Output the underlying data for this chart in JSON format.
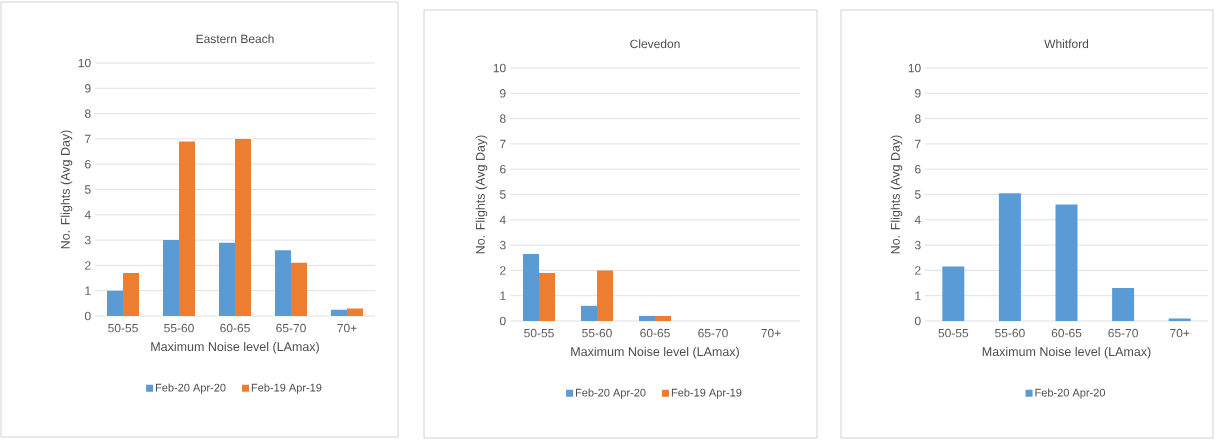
{
  "chart_data": [
    {
      "type": "bar",
      "title": "Eastern Beach",
      "xlabel": "Maximum Noise level (LAmax)",
      "ylabel": "No. Flights (Avg Day)",
      "categories": [
        "50-55",
        "55-60",
        "60-65",
        "65-70",
        "70+"
      ],
      "series": [
        {
          "name": "Feb-20 Apr-20",
          "color": "#5b9bd5",
          "values": [
            1.0,
            3.0,
            2.9,
            2.6,
            0.25
          ]
        },
        {
          "name": "Feb-19 Apr-19",
          "color": "#ed7d31",
          "values": [
            1.7,
            6.9,
            7.0,
            2.1,
            0.3
          ]
        }
      ],
      "ylim": [
        0,
        10
      ],
      "yticks": [
        0,
        1,
        2,
        3,
        4,
        5,
        6,
        7,
        8,
        9,
        10
      ],
      "grid": "y",
      "legend": "bottom"
    },
    {
      "type": "bar",
      "title": "Clevedon",
      "xlabel": "Maximum Noise level (LAmax)",
      "ylabel": "No. Flights (Avg Day)",
      "categories": [
        "50-55",
        "55-60",
        "60-65",
        "65-70",
        "70+"
      ],
      "series": [
        {
          "name": "Feb-20 Apr-20",
          "color": "#5b9bd5",
          "values": [
            2.65,
            0.6,
            0.2,
            0,
            0
          ]
        },
        {
          "name": "Feb-19 Apr-19",
          "color": "#ed7d31",
          "values": [
            1.9,
            2.0,
            0.2,
            0,
            0
          ]
        }
      ],
      "ylim": [
        0,
        10
      ],
      "yticks": [
        0,
        1,
        2,
        3,
        4,
        5,
        6,
        7,
        8,
        9,
        10
      ],
      "grid": "y",
      "legend": "bottom"
    },
    {
      "type": "bar",
      "title": "Whitford",
      "xlabel": "Maximum Noise level (LAmax)",
      "ylabel": "No. Flights (Avg Day)",
      "categories": [
        "50-55",
        "55-60",
        "60-65",
        "65-70",
        "70+"
      ],
      "series": [
        {
          "name": "Feb-20 Apr-20",
          "color": "#5b9bd5",
          "values": [
            2.15,
            5.05,
            4.6,
            1.3,
            0.1
          ]
        }
      ],
      "ylim": [
        0,
        10
      ],
      "yticks": [
        0,
        1,
        2,
        3,
        4,
        5,
        6,
        7,
        8,
        9,
        10
      ],
      "grid": "y",
      "legend": "bottom"
    }
  ]
}
